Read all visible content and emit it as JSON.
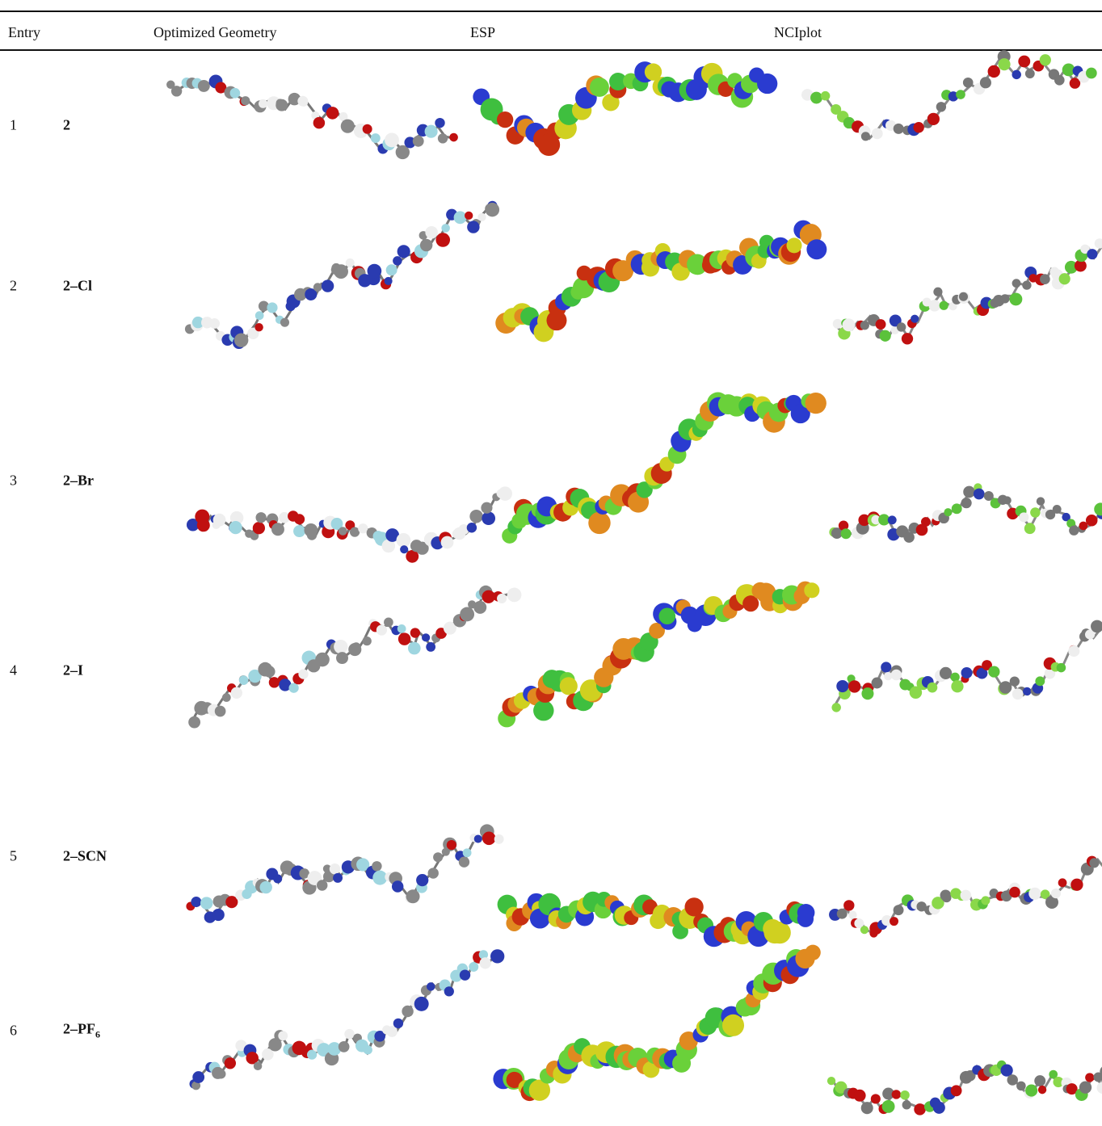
{
  "table": {
    "header": [
      "Entry",
      "Optimized Geometry",
      "ESP",
      "NCIplot"
    ],
    "rows": [
      {
        "entry": "1",
        "compound": "2"
      },
      {
        "entry": "2",
        "compound": "2–Cl"
      },
      {
        "entry": "3",
        "compound": "2–Br"
      },
      {
        "entry": "4",
        "compound": "2–I"
      },
      {
        "entry": "5",
        "compound": "2–SCN"
      },
      {
        "entry": "6",
        "compound": "2–PF",
        "compound_sub": "6"
      }
    ]
  }
}
